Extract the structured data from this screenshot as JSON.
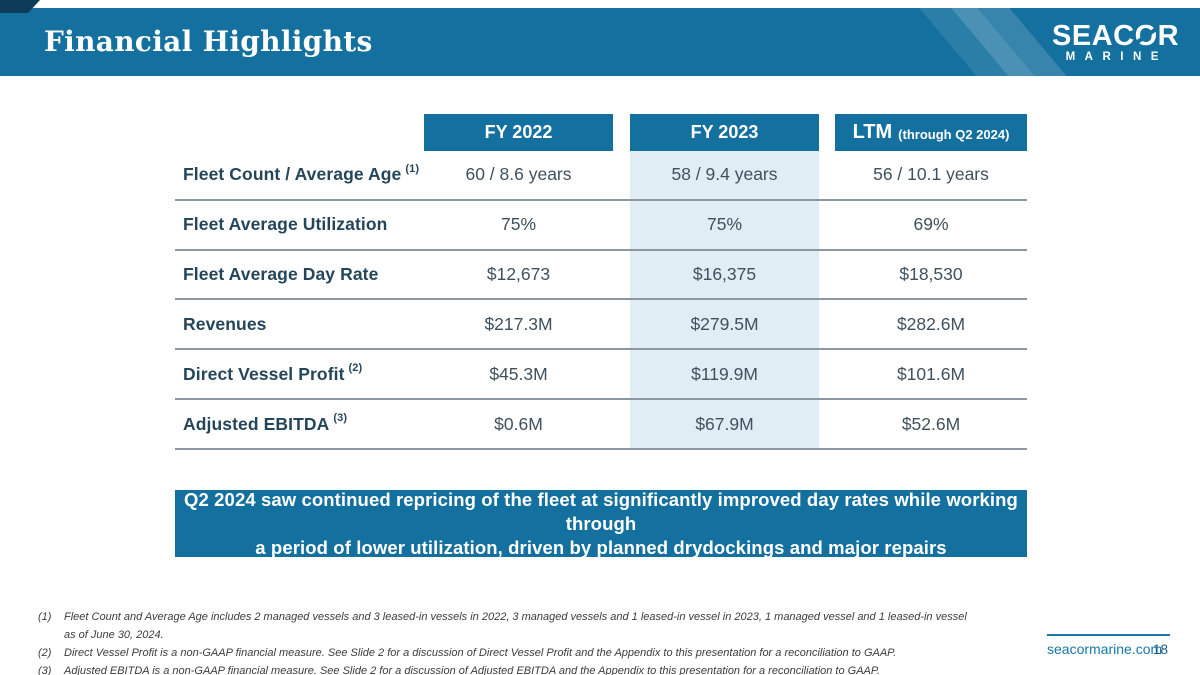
{
  "header": {
    "title": "Financial Highlights",
    "logo_part1": "SEAC",
    "logo_o": "O",
    "logo_part2": "R",
    "logo_sub": "MARINE"
  },
  "table": {
    "columns": [
      {
        "label": "FY 2022",
        "sub": ""
      },
      {
        "label": "FY 2023",
        "sub": ""
      },
      {
        "label": "LTM",
        "sub": "(through Q2 2024)"
      }
    ],
    "rows": [
      {
        "label": "Fleet Count / Average Age",
        "sup": "(1)",
        "values": [
          "60 / 8.6 years",
          "58 / 9.4 years",
          "56 / 10.1 years"
        ]
      },
      {
        "label": "Fleet Average Utilization",
        "sup": "",
        "values": [
          "75%",
          "75%",
          "69%"
        ]
      },
      {
        "label": "Fleet Average Day Rate",
        "sup": "",
        "values": [
          "$12,673",
          "$16,375",
          "$18,530"
        ]
      },
      {
        "label": "Revenues",
        "sup": "",
        "values": [
          "$217.3M",
          "$279.5M",
          "$282.6M"
        ]
      },
      {
        "label": "Direct Vessel Profit",
        "sup": "(2)",
        "values": [
          "$45.3M",
          "$119.9M",
          "$101.6M"
        ]
      },
      {
        "label": "Adjusted EBITDA",
        "sup": "(3)",
        "values": [
          "$0.6M",
          "$67.9M",
          "$52.6M"
        ]
      }
    ]
  },
  "callout": {
    "line1": "Q2 2024 saw continued repricing of the fleet at significantly improved day rates while working through",
    "line2": "a period of lower utilization, driven by planned drydockings and major repairs"
  },
  "footnotes": [
    {
      "num": "(1)",
      "text": "Fleet Count and Average Age includes 2 managed vessels and 3 leased-in vessels in 2022, 3 managed vessels and 1 leased-in vessel in 2023, 1 managed vessel and 1 leased-in vessel as of June 30, 2024."
    },
    {
      "num": "(2)",
      "text": "Direct Vessel Profit is a non-GAAP financial measure. See Slide 2 for a discussion of Direct Vessel Profit and the Appendix to this presentation for a reconciliation to GAAP."
    },
    {
      "num": "(3)",
      "text": "Adjusted EBITDA is a non-GAAP financial measure. See Slide 2 for a discussion of Adjusted EBITDA and the Appendix to this presentation for a reconciliation to GAAP."
    }
  ],
  "footer": {
    "website": "seacormarine.com",
    "page_number": "18"
  },
  "colors": {
    "primary_blue": "#14709f",
    "dark_navy": "#0e3c58",
    "highlight_column": "#e1edf4",
    "label_text": "#25465a",
    "value_text": "#40505c",
    "separator_gray": "#8b98a1",
    "link_blue": "#1878aa"
  }
}
